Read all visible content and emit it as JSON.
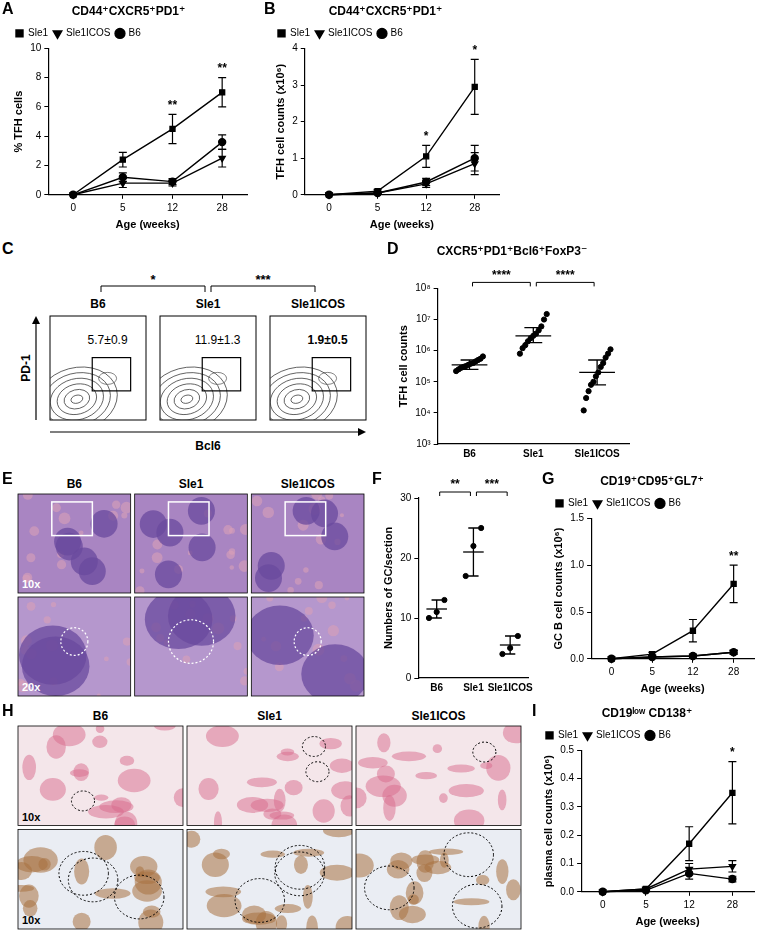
{
  "chart_data": [
    {
      "panel": "A",
      "type": "line",
      "title": "CD44⁺CXCR5⁺PD1⁺",
      "x_label": "Age (weeks)",
      "y_label": "% TFH cells",
      "categories": [
        0,
        5,
        12,
        28
      ],
      "series": [
        {
          "name": "Sle1",
          "color": "#000000",
          "marker": "square",
          "values": [
            0,
            2.4,
            4.5,
            7.0
          ],
          "errors": [
            0,
            0.5,
            1.0,
            1.0
          ]
        },
        {
          "name": "Sle1ICOS",
          "color": "#000000",
          "marker": "triangle-down",
          "values": [
            0,
            0.8,
            0.8,
            2.5
          ],
          "errors": [
            0,
            0.3,
            0.2,
            0.6
          ]
        },
        {
          "name": "B6",
          "color": "#000000",
          "marker": "circle",
          "values": [
            0,
            1.2,
            0.9,
            3.6
          ],
          "errors": [
            0,
            0.3,
            0.2,
            0.5
          ]
        }
      ],
      "ylim": [
        0,
        10
      ],
      "yticks": [
        0,
        2,
        4,
        6,
        8,
        10
      ],
      "grid": false,
      "legend": "top-left",
      "annotations": [
        {
          "x": 12,
          "text": "**"
        },
        {
          "x": 28,
          "text": "**"
        }
      ]
    },
    {
      "panel": "B",
      "type": "line",
      "title": "CD44⁺CXCR5⁺PD1⁺",
      "x_label": "Age (weeks)",
      "y_label": "TFH cell counts (x10⁶)",
      "categories": [
        0,
        5,
        12,
        28
      ],
      "series": [
        {
          "name": "Sle1",
          "color": "#000000",
          "marker": "square",
          "values": [
            0,
            0.1,
            1.05,
            2.95
          ],
          "errors": [
            0,
            0.05,
            0.3,
            0.75
          ]
        },
        {
          "name": "Sle1ICOS",
          "color": "#000000",
          "marker": "triangle-down",
          "values": [
            0,
            0.05,
            0.3,
            0.85
          ],
          "errors": [
            0,
            0.02,
            0.1,
            0.3
          ]
        },
        {
          "name": "B6",
          "color": "#000000",
          "marker": "circle",
          "values": [
            0,
            0.05,
            0.35,
            1.0
          ],
          "errors": [
            0,
            0.02,
            0.1,
            0.35
          ]
        }
      ],
      "ylim": [
        0,
        4
      ],
      "yticks": [
        0,
        1,
        2,
        3,
        4
      ],
      "grid": false,
      "legend": "top-left",
      "annotations": [
        {
          "x": 12,
          "text": "*"
        },
        {
          "x": 28,
          "text": "*"
        }
      ]
    },
    {
      "panel": "D",
      "type": "dot",
      "title": "CXCR5⁺PD1⁺Bcl6⁺FoxP3⁻",
      "y_label": "TFH cell counts",
      "categories": [
        "B6",
        "Sle1",
        "Sle1ICOS"
      ],
      "points": [
        [
          220000,
          250000,
          280000,
          300000,
          320000,
          350000,
          380000,
          400000,
          450000,
          500000,
          550000,
          650000
        ],
        [
          800000,
          1200000,
          1500000,
          2000000,
          2500000,
          3000000,
          3500000,
          4500000,
          6000000,
          10000000,
          15000000
        ],
        [
          12000,
          30000,
          50000,
          80000,
          100000,
          150000,
          200000,
          300000,
          400000,
          600000,
          800000,
          1100000
        ]
      ],
      "values": [
        350000,
        3000000,
        200000
      ],
      "error_bars": [
        [
          250000,
          500000
        ],
        [
          1800000,
          5500000
        ],
        [
          80000,
          500000
        ]
      ],
      "color": "#000000",
      "marker": "circle",
      "log": "y",
      "ylim": [
        1000,
        100000000
      ],
      "yticks": [
        {
          "value": 1000,
          "label": "10³"
        },
        {
          "value": 10000,
          "label": "10⁴"
        },
        {
          "value": 100000,
          "label": "10⁵"
        },
        {
          "value": 1000000,
          "label": "10⁶"
        },
        {
          "value": 10000000,
          "label": "10⁷"
        },
        {
          "value": 100000000,
          "label": "10⁸"
        }
      ],
      "grid": false,
      "comparisons": [
        {
          "between": [
            "B6",
            "Sle1"
          ],
          "label": "****"
        },
        {
          "between": [
            "Sle1",
            "Sle1ICOS"
          ],
          "label": "****"
        }
      ]
    },
    {
      "panel": "F",
      "type": "dot",
      "y_label": "Numbers of GC/section",
      "categories": [
        "B6",
        "Sle1",
        "Sle1ICOS"
      ],
      "points": [
        [
          10,
          11,
          13
        ],
        [
          17,
          22,
          25
        ],
        [
          4,
          5,
          7
        ]
      ],
      "values": [
        11.5,
        21,
        5.5
      ],
      "error_bars": [
        [
          10,
          13
        ],
        [
          17,
          25
        ],
        [
          4,
          7
        ]
      ],
      "color": "#000000",
      "marker": "circle",
      "ylim": [
        0,
        30
      ],
      "yticks": [
        0,
        10,
        20,
        30
      ],
      "grid": false,
      "comparisons": [
        {
          "between": [
            "B6",
            "Sle1"
          ],
          "label": "**"
        },
        {
          "between": [
            "Sle1",
            "Sle1ICOS"
          ],
          "label": "***"
        }
      ]
    },
    {
      "panel": "G",
      "type": "line",
      "title": "CD19⁺CD95⁺GL7⁺",
      "x_label": "Age (weeks)",
      "y_label": "GC B cell counts (x10⁶)",
      "categories": [
        0,
        5,
        12,
        28
      ],
      "series": [
        {
          "name": "Sle1",
          "color": "#000000",
          "marker": "square",
          "values": [
            0,
            0.05,
            0.3,
            0.8
          ],
          "errors": [
            0,
            0.02,
            0.12,
            0.2
          ]
        },
        {
          "name": "Sle1ICOS",
          "color": "#000000",
          "marker": "triangle-down",
          "values": [
            0,
            0.02,
            0.03,
            0.07
          ],
          "errors": [
            0,
            0.01,
            0.01,
            0.02
          ]
        },
        {
          "name": "B6",
          "color": "#000000",
          "marker": "circle",
          "values": [
            0,
            0.02,
            0.03,
            0.07
          ],
          "errors": [
            0,
            0.01,
            0.01,
            0.02
          ]
        }
      ],
      "ylim": [
        0,
        1.5
      ],
      "yticks": [
        {
          "value": 0,
          "label": "0.0"
        },
        0.5,
        {
          "value": 1,
          "label": "1.0"
        },
        1.5
      ],
      "grid": false,
      "legend": "top-left",
      "annotations": [
        {
          "x": 28,
          "text": "**"
        }
      ]
    },
    {
      "panel": "I",
      "type": "line",
      "title": "CD19ˡᵒʷ CD138⁺",
      "x_label": "Age (weeks)",
      "y_label": "plasma cell counts (x10⁶)",
      "categories": [
        0,
        5,
        12,
        28
      ],
      "series": [
        {
          "name": "Sle1",
          "color": "#000000",
          "marker": "square",
          "values": [
            0,
            0.01,
            0.17,
            0.35
          ],
          "errors": [
            0,
            0.005,
            0.06,
            0.11
          ]
        },
        {
          "name": "Sle1ICOS",
          "color": "#000000",
          "marker": "triangle-down",
          "values": [
            0,
            0.01,
            0.08,
            0.09
          ],
          "errors": [
            0,
            0.005,
            0.02,
            0.02
          ]
        },
        {
          "name": "B6",
          "color": "#000000",
          "marker": "circle",
          "values": [
            0,
            0.005,
            0.065,
            0.045
          ],
          "errors": [
            0,
            0.003,
            0.02,
            0.01
          ]
        }
      ],
      "ylim": [
        0,
        0.5
      ],
      "yticks": [
        {
          "value": 0,
          "label": "0.0"
        },
        0.1,
        0.2,
        0.3,
        0.4,
        0.5
      ],
      "grid": false,
      "legend": "top-left",
      "annotations": [
        {
          "x": 28,
          "text": "*"
        }
      ]
    }
  ],
  "figure_panels": [
    {
      "panel": "C",
      "type": "flow",
      "columns": [
        "B6",
        "Sle1",
        "Sle1ICOS"
      ],
      "gate_values": [
        "5.7±0.9",
        "11.9±1.3",
        "1.9±0.5"
      ],
      "x_label": "Bcl6",
      "y_label": "PD-1",
      "comparisons": [
        {
          "between": [
            "B6",
            "Sle1"
          ],
          "label": "*"
        },
        {
          "between": [
            "Sle1",
            "Sle1ICOS"
          ],
          "label": "***"
        }
      ]
    },
    {
      "panel": "E",
      "type": "histology",
      "columns": [
        "B6",
        "Sle1",
        "Sle1ICOS"
      ],
      "rows": [
        "10x",
        "20x"
      ]
    },
    {
      "panel": "H",
      "type": "histology",
      "columns": [
        "B6",
        "Sle1",
        "Sle1ICOS"
      ],
      "rows": [
        "10x",
        "10x"
      ]
    }
  ]
}
